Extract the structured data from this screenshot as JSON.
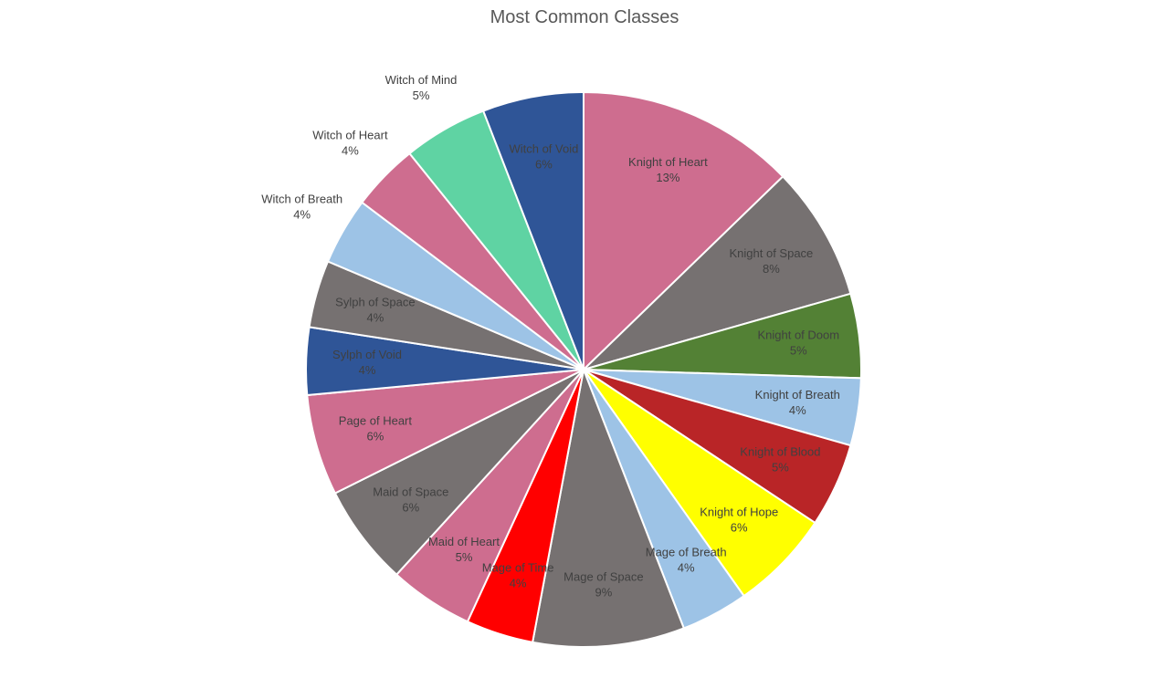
{
  "chart_data": {
    "type": "pie",
    "title": "Most Common Classes",
    "slices": [
      {
        "label": "Knight of Heart",
        "pct_label": "13%",
        "value": 13,
        "color": "#CE6D8F",
        "label_color": "#404040"
      },
      {
        "label": "Knight of Space",
        "pct_label": "8%",
        "value": 8,
        "color": "#767171",
        "label_color": "#404040"
      },
      {
        "label": "Knight of Doom",
        "pct_label": "5%",
        "value": 5,
        "color": "#538135",
        "label_color": "#404040"
      },
      {
        "label": "Knight of Breath",
        "pct_label": "4%",
        "value": 4,
        "color": "#9DC3E6",
        "label_color": "#404040"
      },
      {
        "label": "Knight of Blood",
        "pct_label": "5%",
        "value": 5,
        "color": "#B92527",
        "label_color": "#404040"
      },
      {
        "label": "Knight of Hope",
        "pct_label": "6%",
        "value": 6,
        "color": "#FFFF00",
        "label_color": "#404040"
      },
      {
        "label": "Mage of Breath",
        "pct_label": "4%",
        "value": 4,
        "color": "#9DC3E6",
        "label_color": "#404040"
      },
      {
        "label": "Mage of Space",
        "pct_label": "9%",
        "value": 9,
        "color": "#767171",
        "label_color": "#404040"
      },
      {
        "label": "Mage of Time",
        "pct_label": "4%",
        "value": 4,
        "color": "#FF0000",
        "label_color": "#404040"
      },
      {
        "label": "Maid of Heart",
        "pct_label": "5%",
        "value": 5,
        "color": "#CE6D8F",
        "label_color": "#404040"
      },
      {
        "label": "Maid of Space",
        "pct_label": "6%",
        "value": 6,
        "color": "#767171",
        "label_color": "#404040"
      },
      {
        "label": "Page of Heart",
        "pct_label": "6%",
        "value": 6,
        "color": "#CE6D8F",
        "label_color": "#404040"
      },
      {
        "label": "Sylph of Void",
        "pct_label": "4%",
        "value": 4,
        "color": "#2F5597",
        "label_color": "#404040"
      },
      {
        "label": "Sylph of Space",
        "pct_label": "4%",
        "value": 4,
        "color": "#767171",
        "label_color": "#404040"
      },
      {
        "label": "Witch of Breath",
        "pct_label": "4%",
        "value": 4,
        "color": "#9DC3E6",
        "label_color": "#404040"
      },
      {
        "label": "Witch of Heart",
        "pct_label": "4%",
        "value": 4,
        "color": "#CE6D8F",
        "label_color": "#404040"
      },
      {
        "label": "Witch of Mind",
        "pct_label": "5%",
        "value": 5,
        "color": "#5FD3A3",
        "label_color": "#404040"
      },
      {
        "label": "Witch of Void",
        "pct_label": "6%",
        "value": 6,
        "color": "#2F5597",
        "label_color": "#404040"
      }
    ],
    "start_angle": "12 o'clock",
    "direction": "clockwise",
    "legend": "none"
  }
}
